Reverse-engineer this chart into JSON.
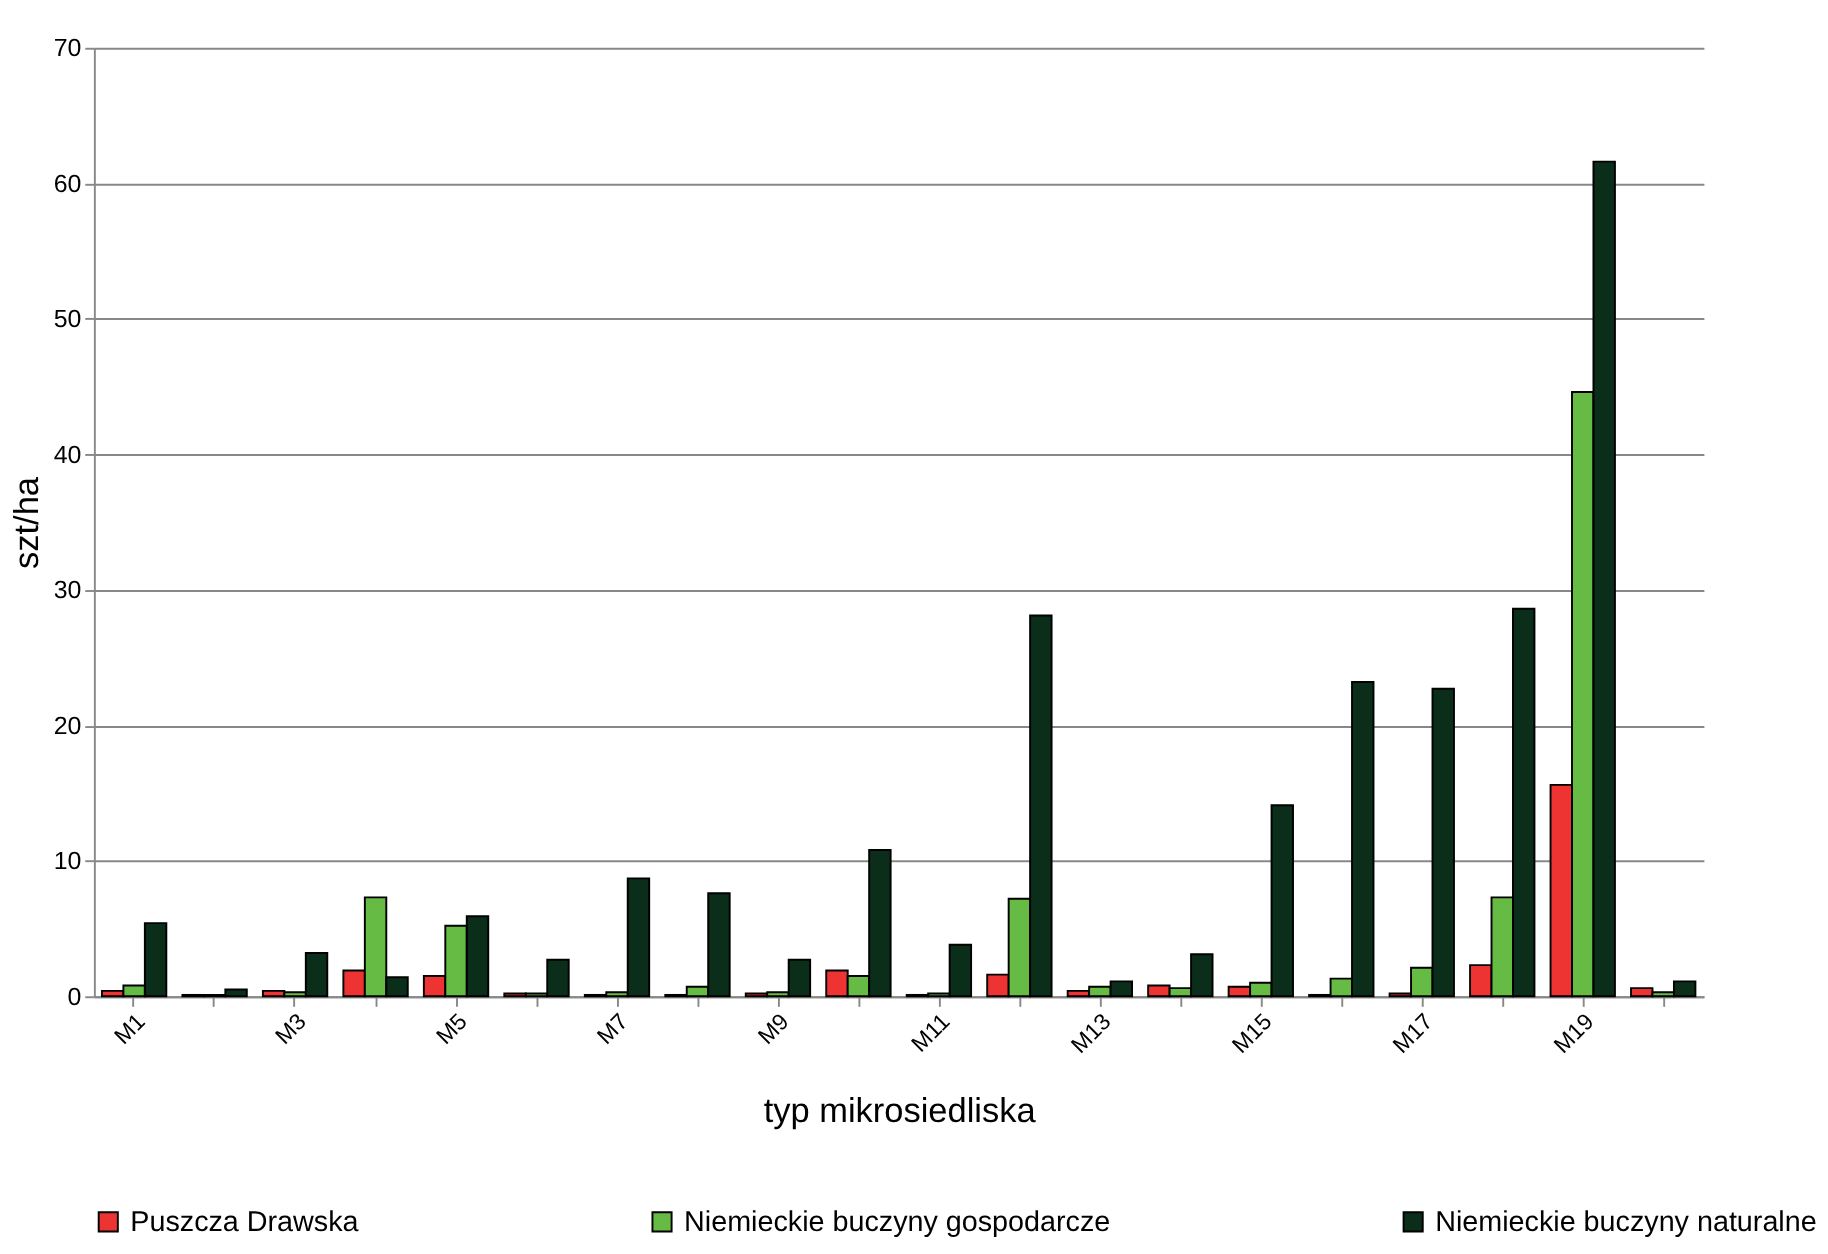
{
  "chart_data": {
    "type": "bar",
    "xlabel": "typ mikrosiedliska",
    "ylabel": "szt/ha",
    "categories": [
      "M1",
      null,
      "M3",
      null,
      "M5",
      null,
      "M7",
      null,
      "M9",
      null,
      "M11",
      null,
      "M13",
      null,
      "M15",
      null,
      "M17",
      null,
      "M19",
      null
    ],
    "series": [
      {
        "name": "Puszcza Drawska",
        "color": "#ee3333",
        "values": [
          0.4,
          0.1,
          0.4,
          1.9,
          1.5,
          0.2,
          0.1,
          0.1,
          0.2,
          1.9,
          0.1,
          1.6,
          0.4,
          0.8,
          0.7,
          0.1,
          0.2,
          2.3,
          15.6,
          0.6
        ]
      },
      {
        "name": "Niemieckie buczyny gospodarcze",
        "color": "#66bb44",
        "values": [
          0.8,
          0.1,
          0.3,
          7.3,
          5.2,
          0.2,
          0.3,
          0.7,
          0.3,
          1.5,
          0.2,
          7.2,
          0.7,
          0.6,
          1.0,
          1.3,
          2.1,
          7.3,
          44.6,
          0.3
        ]
      },
      {
        "name": "Niemieckie buczyny naturalne",
        "color": "#0a2e1a",
        "values": [
          5.4,
          0.5,
          3.2,
          1.4,
          5.9,
          2.7,
          8.7,
          7.6,
          2.7,
          10.8,
          3.8,
          28.1,
          1.1,
          3.1,
          14.1,
          23.2,
          22.7,
          28.6,
          61.6,
          1.1
        ]
      }
    ],
    "ylim": [
      0,
      70
    ],
    "yticks": [
      0,
      10,
      20,
      30,
      40,
      50,
      60,
      70
    ],
    "grid": "y",
    "legend": "bottom"
  }
}
